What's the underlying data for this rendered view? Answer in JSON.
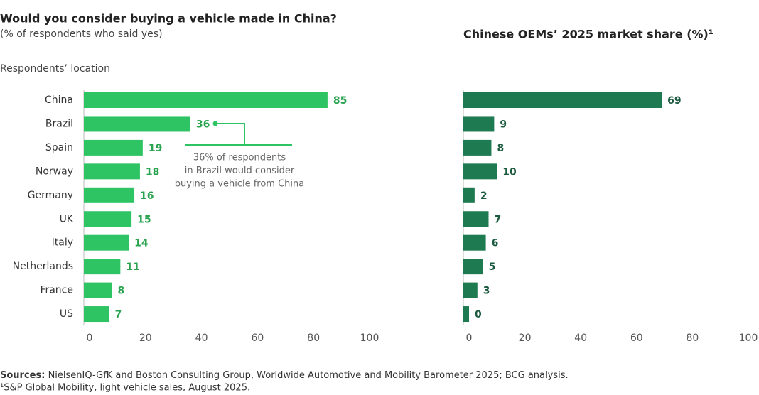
{
  "chart_data": [
    {
      "type": "bar",
      "orientation": "horizontal",
      "title": "Would you consider buying a vehicle made in China?",
      "subtitle": "(% of respondents who said yes)",
      "y_label": "Respondents’ location",
      "categories": [
        "China",
        "Brazil",
        "Spain",
        "Norway",
        "Germany",
        "UK",
        "Italy",
        "Netherlands",
        "France",
        "US"
      ],
      "values": [
        85,
        36,
        19,
        18,
        16,
        15,
        14,
        11,
        8,
        7
      ],
      "color": "#2fc463",
      "label_color": "#2aa350",
      "xlim": [
        0,
        100
      ],
      "xticks": [
        0,
        20,
        40,
        60,
        80,
        100
      ],
      "annotation": [
        "36% of respondents",
        "in Brazil would consider",
        "buying a vehicle from China"
      ]
    },
    {
      "type": "bar",
      "orientation": "horizontal",
      "title": "Chinese OEMs’ 2025 market share (%)¹",
      "values": [
        69,
        9,
        8,
        10,
        2,
        7,
        6,
        5,
        3,
        0
      ],
      "color": "#1e7a50",
      "label_color": "#1b5a3e",
      "xlim": [
        0,
        100
      ],
      "xticks": [
        0,
        20,
        40,
        60,
        80,
        100
      ]
    }
  ],
  "sources_label": "Sources:",
  "sources": "NielsenIQ-GfK and Boston Consulting Group, Worldwide Automotive and Mobility Barometer 2025; BCG analysis.",
  "footnote": "¹S&P Global Mobility, light vehicle sales, August 2025."
}
